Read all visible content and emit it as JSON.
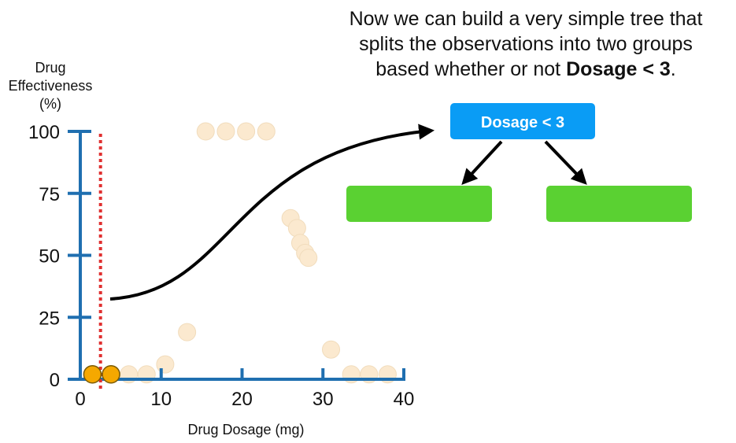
{
  "caption": {
    "line1": "Now we can build a very simple tree that",
    "line2": "splits the observations into two groups",
    "line3_prefix": "based whether or not ",
    "line3_bold": "Dosage <  3",
    "line3_suffix": "."
  },
  "chart_data": {
    "type": "scatter",
    "xlabel": "Drug Dosage (mg)",
    "ylabel_lines": [
      "Drug",
      "Effectiveness",
      "(%)"
    ],
    "xlim": [
      0,
      40
    ],
    "ylim": [
      0,
      100
    ],
    "xticks": [
      0,
      10,
      20,
      30,
      40
    ],
    "yticks": [
      0,
      25,
      50,
      75,
      100
    ],
    "grid": false,
    "threshold_x": 2.5,
    "highlighted_points": [
      {
        "x": 1.5,
        "y": 2
      },
      {
        "x": 3.8,
        "y": 2
      }
    ],
    "faded_points": [
      {
        "x": 6,
        "y": 2
      },
      {
        "x": 8.2,
        "y": 2
      },
      {
        "x": 10.5,
        "y": 6
      },
      {
        "x": 13.2,
        "y": 19
      },
      {
        "x": 15.5,
        "y": 100
      },
      {
        "x": 18,
        "y": 100
      },
      {
        "x": 20.5,
        "y": 100
      },
      {
        "x": 23,
        "y": 100
      },
      {
        "x": 26,
        "y": 65
      },
      {
        "x": 26.8,
        "y": 61
      },
      {
        "x": 27.2,
        "y": 55
      },
      {
        "x": 27.8,
        "y": 51
      },
      {
        "x": 28.2,
        "y": 49
      },
      {
        "x": 31,
        "y": 12
      },
      {
        "x": 33.5,
        "y": 2
      },
      {
        "x": 35.7,
        "y": 2
      },
      {
        "x": 38,
        "y": 2
      }
    ],
    "colors": {
      "axis": "#1f6fb0",
      "threshold": "#e03030",
      "highlight_point": "#f5a800",
      "faded_point": "#fbe9cf"
    }
  },
  "tree": {
    "root_label": "Dosage < 3",
    "root_color": "#0a9cf5",
    "leaf_color": "#5ad132"
  }
}
